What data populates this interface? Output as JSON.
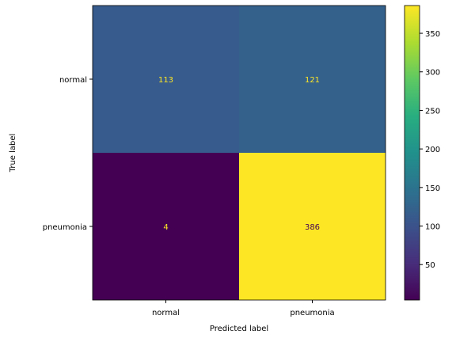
{
  "chart_data": {
    "type": "heatmap",
    "title": "",
    "xlabel": "Predicted label",
    "ylabel": "True label",
    "x_categories": [
      "normal",
      "pneumonia"
    ],
    "y_categories": [
      "normal",
      "pneumonia"
    ],
    "values": [
      [
        113,
        121
      ],
      [
        4,
        386
      ]
    ],
    "colormap": "viridis",
    "colorbar": {
      "range": [
        4,
        386
      ],
      "ticks": [
        50,
        100,
        150,
        200,
        250,
        300,
        350
      ]
    },
    "annotation_colors": {
      "low": "#fde725",
      "high": "#440154"
    },
    "grid": false
  }
}
